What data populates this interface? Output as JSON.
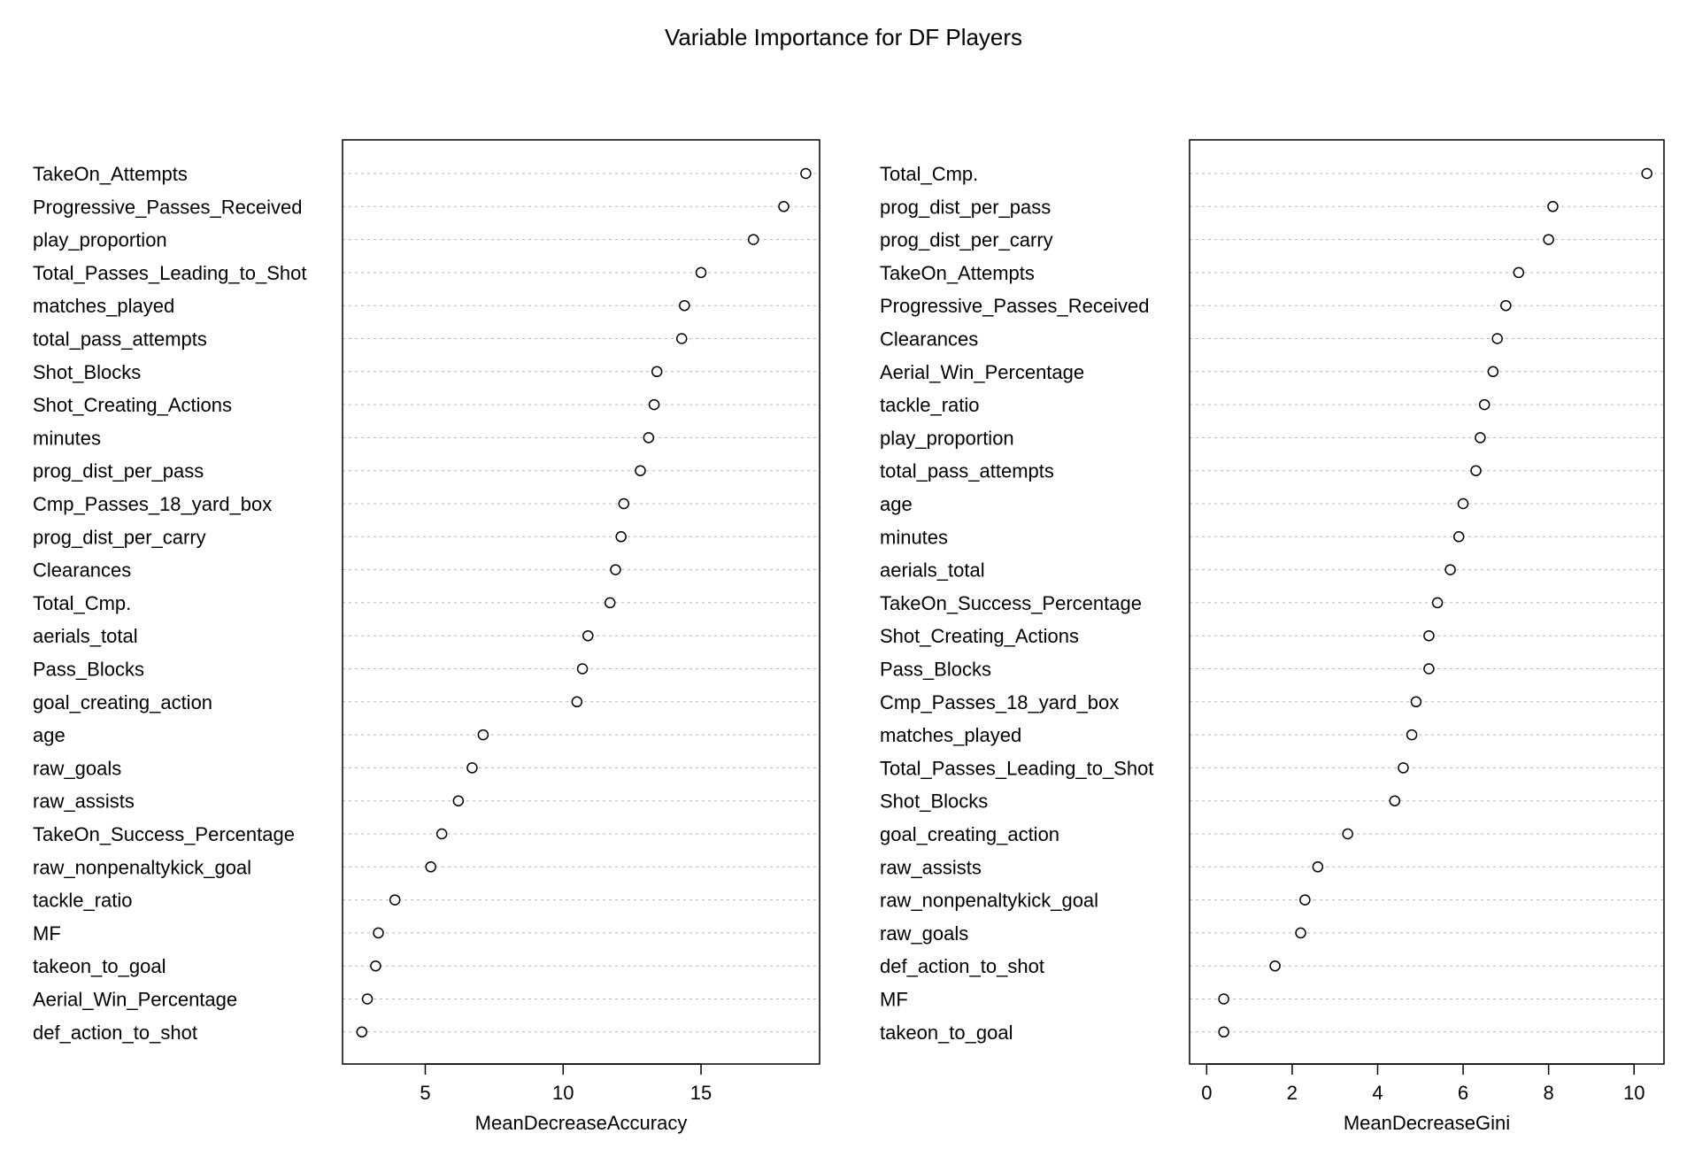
{
  "title": "Variable Importance for DF Players",
  "chart_data": [
    {
      "type": "scatter",
      "xlabel": "MeanDecreaseAccuracy",
      "xlim": [
        2.0,
        19.3
      ],
      "xticks": [
        5,
        10,
        15
      ],
      "grid": "horizontal dotted",
      "categories": [
        "TakeOn_Attempts",
        "Progressive_Passes_Received",
        "play_proportion",
        "Total_Passes_Leading_to_Shot",
        "matches_played",
        "total_pass_attempts",
        "Shot_Blocks",
        "Shot_Creating_Actions",
        "minutes",
        "prog_dist_per_pass",
        "Cmp_Passes_18_yard_box",
        "prog_dist_per_carry",
        "Clearances",
        "Total_Cmp.",
        "aerials_total",
        "Pass_Blocks",
        "goal_creating_action",
        "age",
        "raw_goals",
        "raw_assists",
        "TakeOn_Success_Percentage",
        "raw_nonpenaltykick_goal",
        "tackle_ratio",
        "MF",
        "takeon_to_goal",
        "Aerial_Win_Percentage",
        "def_action_to_shot"
      ],
      "values": [
        18.8,
        18.0,
        16.9,
        15.0,
        14.4,
        14.3,
        13.4,
        13.3,
        13.1,
        12.8,
        12.2,
        12.1,
        11.9,
        11.7,
        10.9,
        10.7,
        10.5,
        7.1,
        6.7,
        6.2,
        5.6,
        5.2,
        3.9,
        3.3,
        3.2,
        2.9,
        2.7
      ]
    },
    {
      "type": "scatter",
      "xlabel": "MeanDecreaseGini",
      "xlim": [
        -0.4,
        10.7
      ],
      "xticks": [
        0,
        2,
        4,
        6,
        8,
        10
      ],
      "grid": "horizontal dotted",
      "categories": [
        "Total_Cmp.",
        "prog_dist_per_pass",
        "prog_dist_per_carry",
        "TakeOn_Attempts",
        "Progressive_Passes_Received",
        "Clearances",
        "Aerial_Win_Percentage",
        "tackle_ratio",
        "play_proportion",
        "total_pass_attempts",
        "age",
        "minutes",
        "aerials_total",
        "TakeOn_Success_Percentage",
        "Shot_Creating_Actions",
        "Pass_Blocks",
        "Cmp_Passes_18_yard_box",
        "matches_played",
        "Total_Passes_Leading_to_Shot",
        "Shot_Blocks",
        "goal_creating_action",
        "raw_assists",
        "raw_nonpenaltykick_goal",
        "raw_goals",
        "def_action_to_shot",
        "MF",
        "takeon_to_goal"
      ],
      "values": [
        10.3,
        8.1,
        8.0,
        7.3,
        7.0,
        6.8,
        6.7,
        6.5,
        6.4,
        6.3,
        6.0,
        5.9,
        5.7,
        5.4,
        5.2,
        5.2,
        4.9,
        4.8,
        4.6,
        4.4,
        3.3,
        2.6,
        2.3,
        2.2,
        1.6,
        0.4,
        0.4
      ]
    }
  ]
}
